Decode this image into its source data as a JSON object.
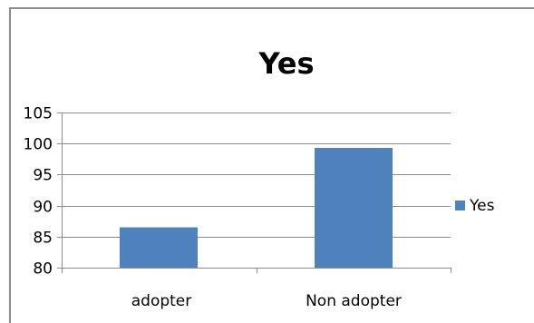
{
  "chart_data": {
    "type": "bar",
    "title": "Yes",
    "categories": [
      "adopter",
      "Non adopter"
    ],
    "series": [
      {
        "name": "Yes",
        "values": [
          86.5,
          99.3
        ],
        "color": "#4f81bd"
      }
    ],
    "ylim": [
      80,
      105
    ],
    "yticks": [
      "105",
      "100",
      "95",
      "90",
      "85",
      "80"
    ],
    "ytick_values": [
      105,
      100,
      95,
      90,
      85,
      80
    ],
    "grid": true,
    "legend": "right"
  }
}
